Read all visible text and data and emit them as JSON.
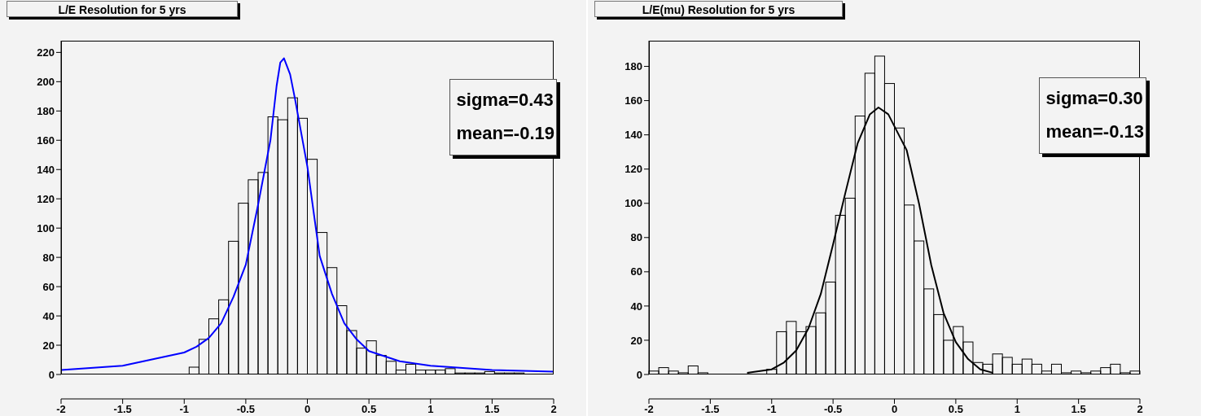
{
  "chart_data": [
    {
      "type": "histogram",
      "title": "L/E Resolution for 5 yrs",
      "annotations": [
        "sigma=0.43",
        "mean=-0.19"
      ],
      "bins": [
        -2,
        -1.92,
        -1.84,
        -1.76,
        -1.68,
        -1.6,
        -1.52,
        -1.44,
        -1.36,
        -1.28,
        -1.2,
        -1.12,
        -1.04,
        -0.96,
        -0.88,
        -0.8,
        -0.72,
        -0.64,
        -0.56,
        -0.48,
        -0.4,
        -0.32,
        -0.24,
        -0.16,
        -0.08,
        0,
        0.08,
        0.16,
        0.24,
        0.32,
        0.4,
        0.48,
        0.56,
        0.64,
        0.72,
        0.8,
        0.88,
        0.96,
        1.04,
        1.12,
        1.2,
        1.28,
        1.36,
        1.44,
        1.52,
        1.6,
        1.68,
        1.76,
        1.84,
        1.92,
        2
      ],
      "values": [
        0,
        0,
        0,
        0,
        0,
        0,
        0,
        0,
        0,
        0,
        0,
        0,
        0,
        5,
        24,
        38,
        51,
        91,
        117,
        133,
        138,
        176,
        174,
        189,
        175,
        147,
        97,
        73,
        47,
        30,
        18,
        23,
        13,
        9,
        3,
        7,
        3,
        3,
        3,
        4,
        1,
        1,
        1,
        2,
        1,
        1,
        1,
        0,
        0,
        0
      ],
      "color": "#000000",
      "series": [
        {
          "type": "line",
          "color": "#0000ff",
          "x": [
            -2,
            -1.5,
            -1,
            -0.9,
            -0.8,
            -0.7,
            -0.6,
            -0.5,
            -0.4,
            -0.3,
            -0.25,
            -0.22,
            -0.19,
            -0.14,
            -0.1,
            0,
            0.1,
            0.2,
            0.3,
            0.4,
            0.5,
            0.75,
            1,
            1.5,
            2
          ],
          "values": [
            3,
            6,
            15,
            19,
            25,
            35,
            53,
            75,
            116,
            160,
            197,
            213,
            216,
            205,
            188,
            142,
            81,
            55,
            35,
            24,
            16,
            9,
            6,
            3,
            2
          ]
        }
      ],
      "xlim": [
        -2,
        2
      ],
      "xticks": [
        -2,
        -1.5,
        -1,
        -0.5,
        0,
        0.5,
        1,
        1.5,
        2
      ],
      "ylim": [
        0,
        228
      ],
      "yticks": [
        0,
        20,
        40,
        60,
        80,
        100,
        120,
        140,
        160,
        180,
        200,
        220
      ],
      "grid": false,
      "legend": false,
      "marker": "none"
    },
    {
      "type": "histogram",
      "title": "L/E(mu) Resolution for 5 yrs",
      "annotations": [
        "sigma=0.30",
        "mean=-0.13"
      ],
      "bins": [
        -2,
        -1.92,
        -1.84,
        -1.76,
        -1.68,
        -1.6,
        -1.52,
        -1.44,
        -1.36,
        -1.28,
        -1.2,
        -1.12,
        -1.04,
        -0.96,
        -0.88,
        -0.8,
        -0.72,
        -0.64,
        -0.56,
        -0.48,
        -0.4,
        -0.32,
        -0.24,
        -0.16,
        -0.08,
        0,
        0.08,
        0.16,
        0.24,
        0.32,
        0.4,
        0.48,
        0.56,
        0.64,
        0.72,
        0.8,
        0.88,
        0.96,
        1.04,
        1.12,
        1.2,
        1.28,
        1.36,
        1.44,
        1.52,
        1.6,
        1.68,
        1.76,
        1.84,
        1.92,
        2
      ],
      "values": [
        2,
        4,
        2,
        1,
        5,
        1,
        0,
        0,
        0,
        0,
        0,
        0,
        3,
        25,
        31,
        25,
        28,
        36,
        54,
        93,
        103,
        151,
        176,
        186,
        170,
        144,
        99,
        78,
        50,
        35,
        20,
        28,
        19,
        7,
        6,
        12,
        10,
        6,
        9,
        6,
        2,
        6,
        1,
        2,
        1,
        2,
        4,
        6,
        1,
        2
      ],
      "color": "#000000",
      "series": [
        {
          "type": "line",
          "color": "#000000",
          "x": [
            -1.2,
            -1,
            -0.9,
            -0.8,
            -0.7,
            -0.6,
            -0.5,
            -0.4,
            -0.3,
            -0.2,
            -0.13,
            -0.05,
            0.05,
            0.1,
            0.2,
            0.3,
            0.4,
            0.5,
            0.6,
            0.7,
            0.8
          ],
          "values": [
            1,
            3,
            7,
            14,
            27,
            47,
            76,
            106,
            135,
            152,
            156,
            152,
            138,
            131,
            100,
            64,
            36,
            19,
            9,
            3,
            1
          ]
        }
      ],
      "xlim": [
        -2,
        2
      ],
      "xticks": [
        -2,
        -1.5,
        -1,
        -0.5,
        0,
        0.5,
        1,
        1.5,
        2
      ],
      "ylim": [
        0,
        195
      ],
      "yticks": [
        0,
        20,
        40,
        60,
        80,
        100,
        120,
        140,
        160,
        180
      ],
      "grid": false,
      "legend": false,
      "marker": "none"
    }
  ]
}
